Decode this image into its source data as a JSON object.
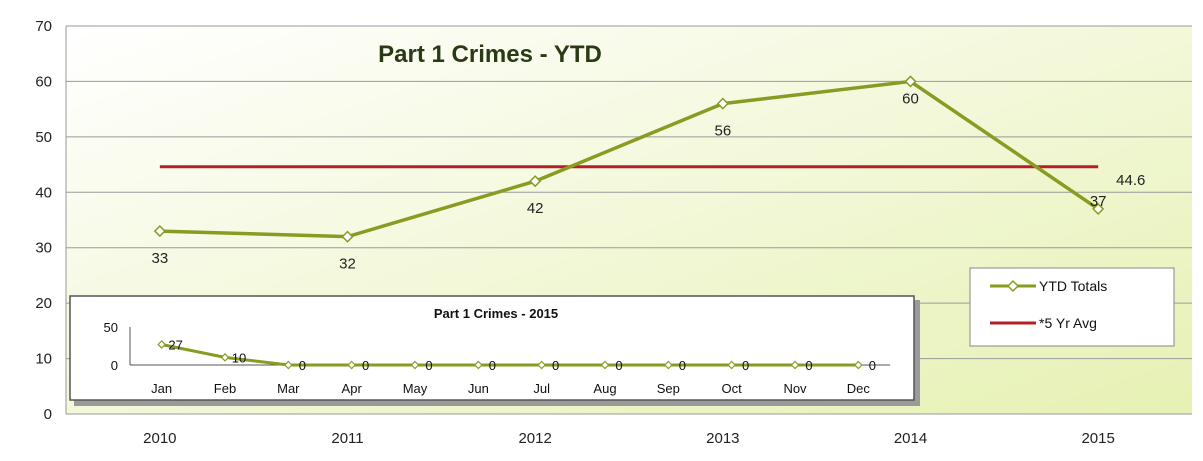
{
  "colors": {
    "series_line": "#8a9a22",
    "series_marker_fill": "#ffffff",
    "avg_line": "#b3202a",
    "plot_bg_start": "#ffffff",
    "plot_bg_end": "#e6f1b3",
    "grid": "#9a9a9a",
    "inset_border": "#555555"
  },
  "chart_data": [
    {
      "type": "line",
      "title": "Part 1 Crimes - YTD",
      "categories": [
        "2010",
        "2011",
        "2012",
        "2013",
        "2014",
        "2015"
      ],
      "ylim": [
        0,
        70
      ],
      "yticks": [
        0,
        10,
        20,
        30,
        40,
        50,
        60,
        70
      ],
      "grid": true,
      "legend_position": "right",
      "series": [
        {
          "name": "YTD Totals",
          "values": [
            33,
            32,
            42,
            56,
            60,
            37
          ],
          "labels": [
            "33",
            "32",
            "42",
            "56",
            "60",
            "37"
          ]
        }
      ],
      "reference_line": {
        "name": "*5 Yr Avg",
        "value": 44.6,
        "label": "44.6"
      }
    },
    {
      "type": "line",
      "title": "Part 1 Crimes -  2015",
      "categories": [
        "Jan",
        "Feb",
        "Mar",
        "Apr",
        "May",
        "Jun",
        "Jul",
        "Aug",
        "Sep",
        "Oct",
        "Nov",
        "Dec"
      ],
      "ylim": [
        0,
        50
      ],
      "yticks": [
        0,
        50
      ],
      "values": [
        27,
        10,
        0,
        0,
        0,
        0,
        0,
        0,
        0,
        0,
        0,
        0
      ],
      "labels": [
        "27",
        "10",
        "0",
        "0",
        "0",
        "0",
        "0",
        "0",
        "0",
        "0",
        "0",
        "0"
      ]
    }
  ]
}
